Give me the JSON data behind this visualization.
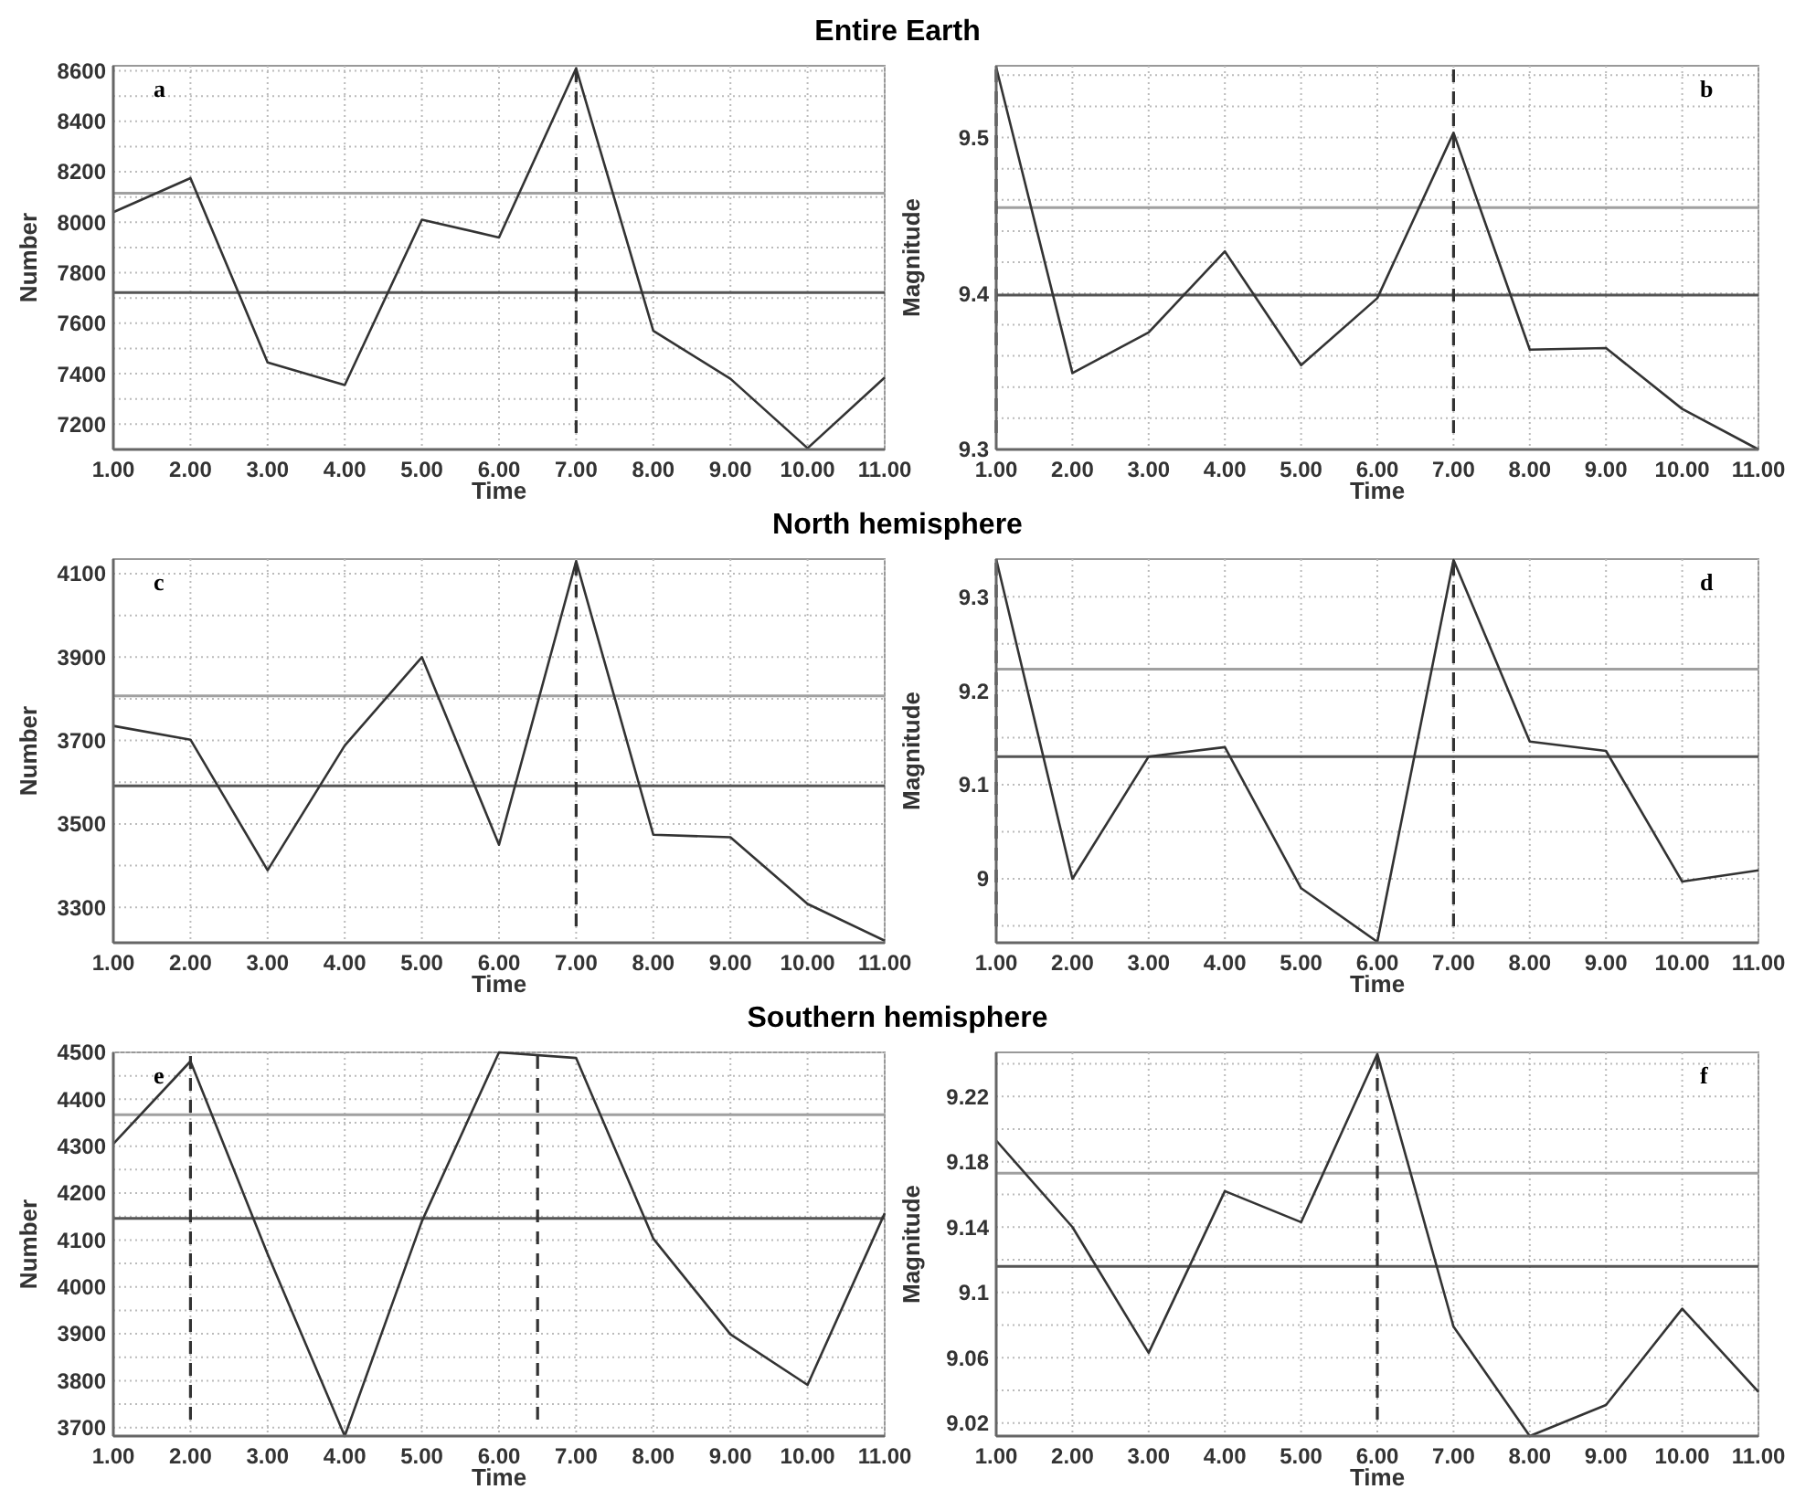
{
  "chart_data": [
    {
      "type": "line",
      "title": "Entire Earth",
      "xlabel": "Time",
      "ylabel": "Number",
      "annotations": [
        "a"
      ],
      "x": [
        1,
        2,
        3,
        4,
        5,
        6,
        7,
        8,
        9,
        10,
        11
      ],
      "xlim": [
        1,
        11
      ],
      "xticks": [
        {
          "value": 1,
          "label": "1.00"
        },
        {
          "value": 2,
          "label": "2.00"
        },
        {
          "value": 3,
          "label": "3.00"
        },
        {
          "value": 4,
          "label": "4.00"
        },
        {
          "value": 5,
          "label": "5.00"
        },
        {
          "value": 6,
          "label": "6.00"
        },
        {
          "value": 7,
          "label": "7.00"
        },
        {
          "value": 8,
          "label": "8.00"
        },
        {
          "value": 9,
          "label": "9.00"
        },
        {
          "value": 10,
          "label": "10.00"
        },
        {
          "value": 11,
          "label": "11.00"
        }
      ],
      "ylim": [
        7100,
        8620
      ],
      "yticks": [
        {
          "value": 7100,
          "label": null
        },
        7200,
        {
          "value": 7300,
          "label": null
        },
        7400,
        {
          "value": 7500,
          "label": null
        },
        7600,
        {
          "value": 7700,
          "label": null
        },
        7800,
        {
          "value": 7900,
          "label": null
        },
        8000,
        {
          "value": 8100,
          "label": null
        },
        8200,
        {
          "value": 8300,
          "label": null
        },
        8400,
        {
          "value": 8500,
          "label": null
        },
        8600
      ],
      "grid": true,
      "marker": "none",
      "line_style": "solid",
      "series": [
        {
          "color": "#333333",
          "values": [
            8040,
            8175,
            7445,
            7355,
            8010,
            7940,
            8610,
            7570,
            7380,
            7105,
            7385
          ]
        }
      ],
      "ref_lines": [
        {
          "axis": "y",
          "value": 8115,
          "color": "#a0a0a0",
          "line_style": "solid"
        },
        {
          "axis": "y",
          "value": 7722,
          "color": "#555555",
          "line_style": "solid"
        },
        {
          "axis": "x",
          "value": 7,
          "color": "#333333",
          "line_style": "dashed"
        }
      ]
    },
    {
      "type": "line",
      "xlabel": "Time",
      "ylabel": "Magnitude",
      "annotations": [
        "b"
      ],
      "x": [
        1,
        2,
        3,
        4,
        5,
        6,
        7,
        8,
        9,
        10,
        11
      ],
      "xlim": [
        1,
        11
      ],
      "xticks": [
        {
          "value": 1,
          "label": "1.00"
        },
        {
          "value": 2,
          "label": "2.00"
        },
        {
          "value": 3,
          "label": "3.00"
        },
        {
          "value": 4,
          "label": "4.00"
        },
        {
          "value": 5,
          "label": "5.00"
        },
        {
          "value": 6,
          "label": "6.00"
        },
        {
          "value": 7,
          "label": "7.00"
        },
        {
          "value": 8,
          "label": "8.00"
        },
        {
          "value": 9,
          "label": "9.00"
        },
        {
          "value": 10,
          "label": "10.00"
        },
        {
          "value": 11,
          "label": "11.00"
        }
      ],
      "ylim": [
        9.3,
        9.546
      ],
      "yticks": [
        9.3,
        {
          "value": 9.32,
          "label": null
        },
        {
          "value": 9.34,
          "label": null
        },
        {
          "value": 9.36,
          "label": null
        },
        {
          "value": 9.38,
          "label": null
        },
        9.4,
        {
          "value": 9.42,
          "label": null
        },
        {
          "value": 9.44,
          "label": null
        },
        {
          "value": 9.46,
          "label": null
        },
        {
          "value": 9.48,
          "label": null
        },
        9.5,
        {
          "value": 9.52,
          "label": null
        },
        {
          "value": 9.54,
          "label": null
        }
      ],
      "grid": true,
      "marker": "none",
      "line_style": "solid",
      "series": [
        {
          "color": "#333333",
          "values": [
            9.545,
            9.349,
            9.375,
            9.427,
            9.354,
            9.397,
            9.503,
            9.364,
            9.365,
            9.326,
            9.3
          ]
        }
      ],
      "ref_lines": [
        {
          "axis": "y",
          "value": 9.455,
          "color": "#a0a0a0",
          "line_style": "solid"
        },
        {
          "axis": "y",
          "value": 9.399,
          "color": "#555555",
          "line_style": "solid"
        },
        {
          "axis": "x",
          "value": 1,
          "color": "#333333",
          "line_style": "dashed"
        },
        {
          "axis": "x",
          "value": 7,
          "color": "#333333",
          "line_style": "dashed"
        }
      ]
    },
    {
      "type": "line",
      "title": "North hemisphere",
      "xlabel": "Time",
      "ylabel": "Number",
      "annotations": [
        "c"
      ],
      "x": [
        1,
        2,
        3,
        4,
        5,
        6,
        7,
        8,
        9,
        10,
        11
      ],
      "xlim": [
        1,
        11
      ],
      "xticks": [
        {
          "value": 1,
          "label": "1.00"
        },
        {
          "value": 2,
          "label": "2.00"
        },
        {
          "value": 3,
          "label": "3.00"
        },
        {
          "value": 4,
          "label": "4.00"
        },
        {
          "value": 5,
          "label": "5.00"
        },
        {
          "value": 6,
          "label": "6.00"
        },
        {
          "value": 7,
          "label": "7.00"
        },
        {
          "value": 8,
          "label": "8.00"
        },
        {
          "value": 9,
          "label": "9.00"
        },
        {
          "value": 10,
          "label": "10.00"
        },
        {
          "value": 11,
          "label": "11.00"
        }
      ],
      "ylim": [
        3215,
        4135
      ],
      "yticks": [
        3300,
        {
          "value": 3400,
          "label": null
        },
        3500,
        {
          "value": 3600,
          "label": null
        },
        3700,
        {
          "value": 3800,
          "label": null
        },
        3900,
        {
          "value": 4000,
          "label": null
        },
        4100
      ],
      "grid": true,
      "marker": "none",
      "line_style": "solid",
      "series": [
        {
          "color": "#333333",
          "values": [
            3735,
            3702,
            3389,
            3688,
            3900,
            3450,
            4130,
            3474,
            3468,
            3308,
            3220
          ]
        }
      ],
      "ref_lines": [
        {
          "axis": "y",
          "value": 3807,
          "color": "#a0a0a0",
          "line_style": "solid"
        },
        {
          "axis": "y",
          "value": 3591,
          "color": "#555555",
          "line_style": "solid"
        },
        {
          "axis": "x",
          "value": 7,
          "color": "#333333",
          "line_style": "dashed"
        }
      ]
    },
    {
      "type": "line",
      "xlabel": "Time",
      "ylabel": "Magnitude",
      "annotations": [
        "d"
      ],
      "x": [
        1,
        2,
        3,
        4,
        5,
        6,
        7,
        8,
        9,
        10,
        11
      ],
      "xlim": [
        1,
        11
      ],
      "xticks": [
        {
          "value": 1,
          "label": "1.00"
        },
        {
          "value": 2,
          "label": "2.00"
        },
        {
          "value": 3,
          "label": "3.00"
        },
        {
          "value": 4,
          "label": "4.00"
        },
        {
          "value": 5,
          "label": "5.00"
        },
        {
          "value": 6,
          "label": "6.00"
        },
        {
          "value": 7,
          "label": "7.00"
        },
        {
          "value": 8,
          "label": "8.00"
        },
        {
          "value": 9,
          "label": "9.00"
        },
        {
          "value": 10,
          "label": "10.00"
        },
        {
          "value": 11,
          "label": "11.00"
        }
      ],
      "ylim": [
        8.932,
        9.34
      ],
      "yticks": [
        {
          "value": 8.95,
          "label": null
        },
        9,
        {
          "value": 9.05,
          "label": null
        },
        9.1,
        {
          "value": 9.15,
          "label": null
        },
        9.2,
        {
          "value": 9.25,
          "label": null
        },
        9.3
      ],
      "grid": true,
      "marker": "none",
      "line_style": "solid",
      "series": [
        {
          "color": "#333333",
          "values": [
            9.34,
            9.0,
            9.13,
            9.14,
            8.99,
            8.933,
            9.339,
            9.146,
            9.136,
            8.997,
            9.009
          ]
        }
      ],
      "ref_lines": [
        {
          "axis": "y",
          "value": 9.223,
          "color": "#a0a0a0",
          "line_style": "solid"
        },
        {
          "axis": "y",
          "value": 9.13,
          "color": "#555555",
          "line_style": "solid"
        },
        {
          "axis": "x",
          "value": 1,
          "color": "#333333",
          "line_style": "dashed"
        },
        {
          "axis": "x",
          "value": 7,
          "color": "#333333",
          "line_style": "dashed"
        }
      ]
    },
    {
      "type": "line",
      "title": "Southern hemisphere",
      "xlabel": "Time",
      "ylabel": "Number",
      "annotations": [
        "e"
      ],
      "x": [
        1,
        2,
        3,
        4,
        5,
        6,
        7,
        8,
        9,
        10,
        11
      ],
      "xlim": [
        1,
        11
      ],
      "xticks": [
        {
          "value": 1,
          "label": "1.00"
        },
        {
          "value": 2,
          "label": "2.00"
        },
        {
          "value": 3,
          "label": "3.00"
        },
        {
          "value": 4,
          "label": "4.00"
        },
        {
          "value": 5,
          "label": "5.00"
        },
        {
          "value": 6,
          "label": "6.00"
        },
        {
          "value": 7,
          "label": "7.00"
        },
        {
          "value": 8,
          "label": "8.00"
        },
        {
          "value": 9,
          "label": "9.00"
        },
        {
          "value": 10,
          "label": "10.00"
        },
        {
          "value": 11,
          "label": "11.00"
        }
      ],
      "ylim": [
        3682,
        4500
      ],
      "yticks": [
        3700,
        {
          "value": 3750,
          "label": null
        },
        3800,
        {
          "value": 3850,
          "label": null
        },
        3900,
        {
          "value": 3950,
          "label": null
        },
        4000,
        {
          "value": 4050,
          "label": null
        },
        4100,
        {
          "value": 4150,
          "label": null
        },
        4200,
        {
          "value": 4250,
          "label": null
        },
        4300,
        {
          "value": 4350,
          "label": null
        },
        4400,
        {
          "value": 4450,
          "label": null
        },
        4500
      ],
      "grid": true,
      "marker": "none",
      "line_style": "solid",
      "series": [
        {
          "color": "#333333",
          "values": [
            4305,
            4481,
            4070,
            3682,
            4140,
            4500,
            4488,
            4103,
            3899,
            3791,
            4157
          ]
        }
      ],
      "ref_lines": [
        {
          "axis": "y",
          "value": 4367,
          "color": "#a0a0a0",
          "line_style": "solid"
        },
        {
          "axis": "y",
          "value": 4146,
          "color": "#555555",
          "line_style": "solid"
        },
        {
          "axis": "x",
          "value": 2,
          "color": "#333333",
          "line_style": "dashed"
        },
        {
          "axis": "x",
          "value": 6.5,
          "color": "#333333",
          "line_style": "dashed"
        }
      ]
    },
    {
      "type": "line",
      "xlabel": "Time",
      "ylabel": "Magnitude",
      "annotations": [
        "f"
      ],
      "x": [
        1,
        2,
        3,
        4,
        5,
        6,
        7,
        8,
        9,
        10,
        11
      ],
      "xlim": [
        1,
        11
      ],
      "xticks": [
        {
          "value": 1,
          "label": "1.00"
        },
        {
          "value": 2,
          "label": "2.00"
        },
        {
          "value": 3,
          "label": "3.00"
        },
        {
          "value": 4,
          "label": "4.00"
        },
        {
          "value": 5,
          "label": "5.00"
        },
        {
          "value": 6,
          "label": "6.00"
        },
        {
          "value": 7,
          "label": "7.00"
        },
        {
          "value": 8,
          "label": "8.00"
        },
        {
          "value": 9,
          "label": "9.00"
        },
        {
          "value": 10,
          "label": "10.00"
        },
        {
          "value": 11,
          "label": "11.00"
        }
      ],
      "ylim": [
        9.012,
        9.247
      ],
      "yticks": [
        9.02,
        {
          "value": 9.04,
          "label": null
        },
        9.06,
        {
          "value": 9.08,
          "label": null
        },
        9.1,
        {
          "value": 9.12,
          "label": null
        },
        9.14,
        {
          "value": 9.16,
          "label": null
        },
        9.18,
        {
          "value": 9.2,
          "label": null
        },
        9.22,
        {
          "value": 9.24,
          "label": null
        }
      ],
      "grid": true,
      "marker": "none",
      "line_style": "solid",
      "series": [
        {
          "color": "#333333",
          "values": [
            9.193,
            9.14,
            9.063,
            9.162,
            9.143,
            9.246,
            9.079,
            9.012,
            9.031,
            9.09,
            9.039
          ]
        }
      ],
      "ref_lines": [
        {
          "axis": "y",
          "value": 9.173,
          "color": "#a0a0a0",
          "line_style": "solid"
        },
        {
          "axis": "y",
          "value": 9.116,
          "color": "#555555",
          "line_style": "solid"
        },
        {
          "axis": "x",
          "value": 6,
          "color": "#333333",
          "line_style": "dashed"
        }
      ]
    }
  ]
}
